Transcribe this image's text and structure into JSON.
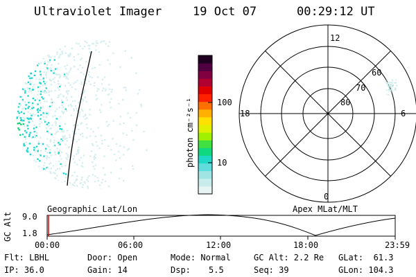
{
  "header": {
    "instrument": "Ultraviolet Imager",
    "date": "19 Oct 07",
    "time": "00:29:12 UT"
  },
  "colorbar": {
    "unit_label": "photon cm⁻²s⁻¹",
    "ticks": [
      "100",
      "10"
    ],
    "colors": [
      "#e8f4f4",
      "#c8ecec",
      "#a0e4e4",
      "#60dcdc",
      "#20d8c8",
      "#10d880",
      "#40e040",
      "#a0f000",
      "#e0f000",
      "#ffe000",
      "#ffb000",
      "#ff7000",
      "#ff2000",
      "#e00000",
      "#b00030",
      "#800040",
      "#500040",
      "#200020"
    ]
  },
  "polar": {
    "mlt_labels": {
      "top": "12",
      "left": "18",
      "right": "6",
      "bottom": "0"
    },
    "lat_labels": [
      "60",
      "70",
      "80"
    ]
  },
  "timeline": {
    "axis_title": "GC Alt",
    "y_ticks": [
      "9.0",
      "1.8"
    ],
    "left_caption": "Geographic Lat/Lon",
    "right_caption": "Apex MLat/MLT",
    "x_ticks": [
      "00:00",
      "06:00",
      "12:00",
      "18:00",
      "23:59"
    ]
  },
  "info": {
    "flt": "Flt: LBHL",
    "ip": "IP: 36.0",
    "door": "Door: Open",
    "gain": "Gain: 14",
    "mode": "Mode: Normal",
    "dsp_label": "Dsp:",
    "dsp_value": "5.5",
    "gc_alt": "GC Alt: 2.2 Re",
    "seq": "Seq: 39",
    "glat": "GLat:  61.3",
    "glon": "GLon: 104.3"
  },
  "colors": {
    "aurora_faint": "#d8eeee",
    "aurora_cyan": "#20d8d0",
    "aurora_green": "#10d070",
    "time_marker": "#e00000"
  }
}
